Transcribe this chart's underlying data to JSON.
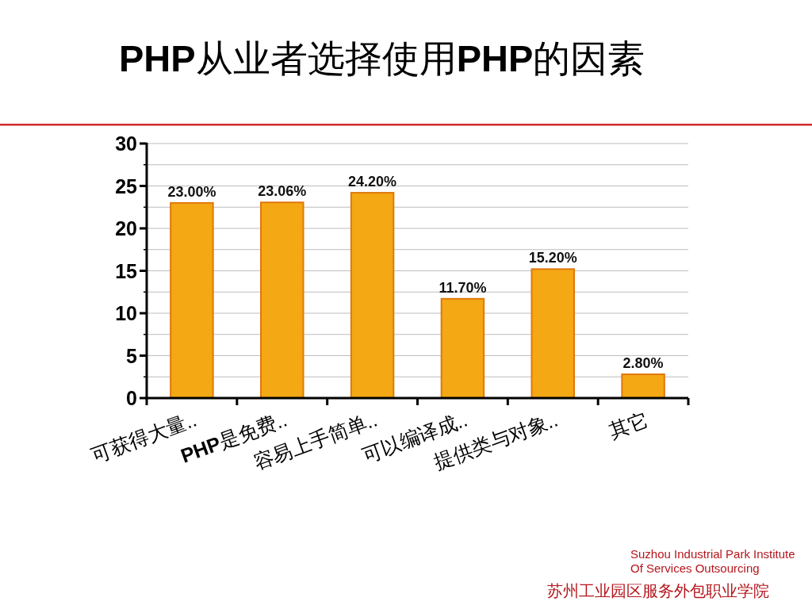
{
  "chart_data": {
    "type": "bar",
    "title": "PHP从业者选择使用PHP的因素",
    "categories": [
      "可获得大量..",
      "PHP是免费..",
      "容易上手简单..",
      "可以编译成..",
      "提供类与对象..",
      "其它"
    ],
    "values": [
      23.0,
      23.06,
      24.2,
      11.7,
      15.2,
      2.8
    ],
    "value_labels": [
      "23.00%",
      "23.06%",
      "24.20%",
      "11.70%",
      "15.20%",
      "2.80%"
    ],
    "color": "#f4a814",
    "ylim": [
      0,
      30
    ],
    "yticks": [
      0,
      {
        "value": 2.5,
        "label": null
      },
      5,
      {
        "value": 7.5,
        "label": null
      },
      10,
      {
        "value": 12.5,
        "label": null
      },
      15,
      {
        "value": 17.5,
        "label": null
      },
      20,
      {
        "value": 22.5,
        "label": null
      },
      25,
      {
        "value": 27.5,
        "label": null
      },
      30
    ],
    "grid": "y",
    "annotations": [
      "Suzhou Industrial Park Institute",
      "Of Services Outsourcing",
      "苏州工业园区服务外包职业学院"
    ]
  }
}
